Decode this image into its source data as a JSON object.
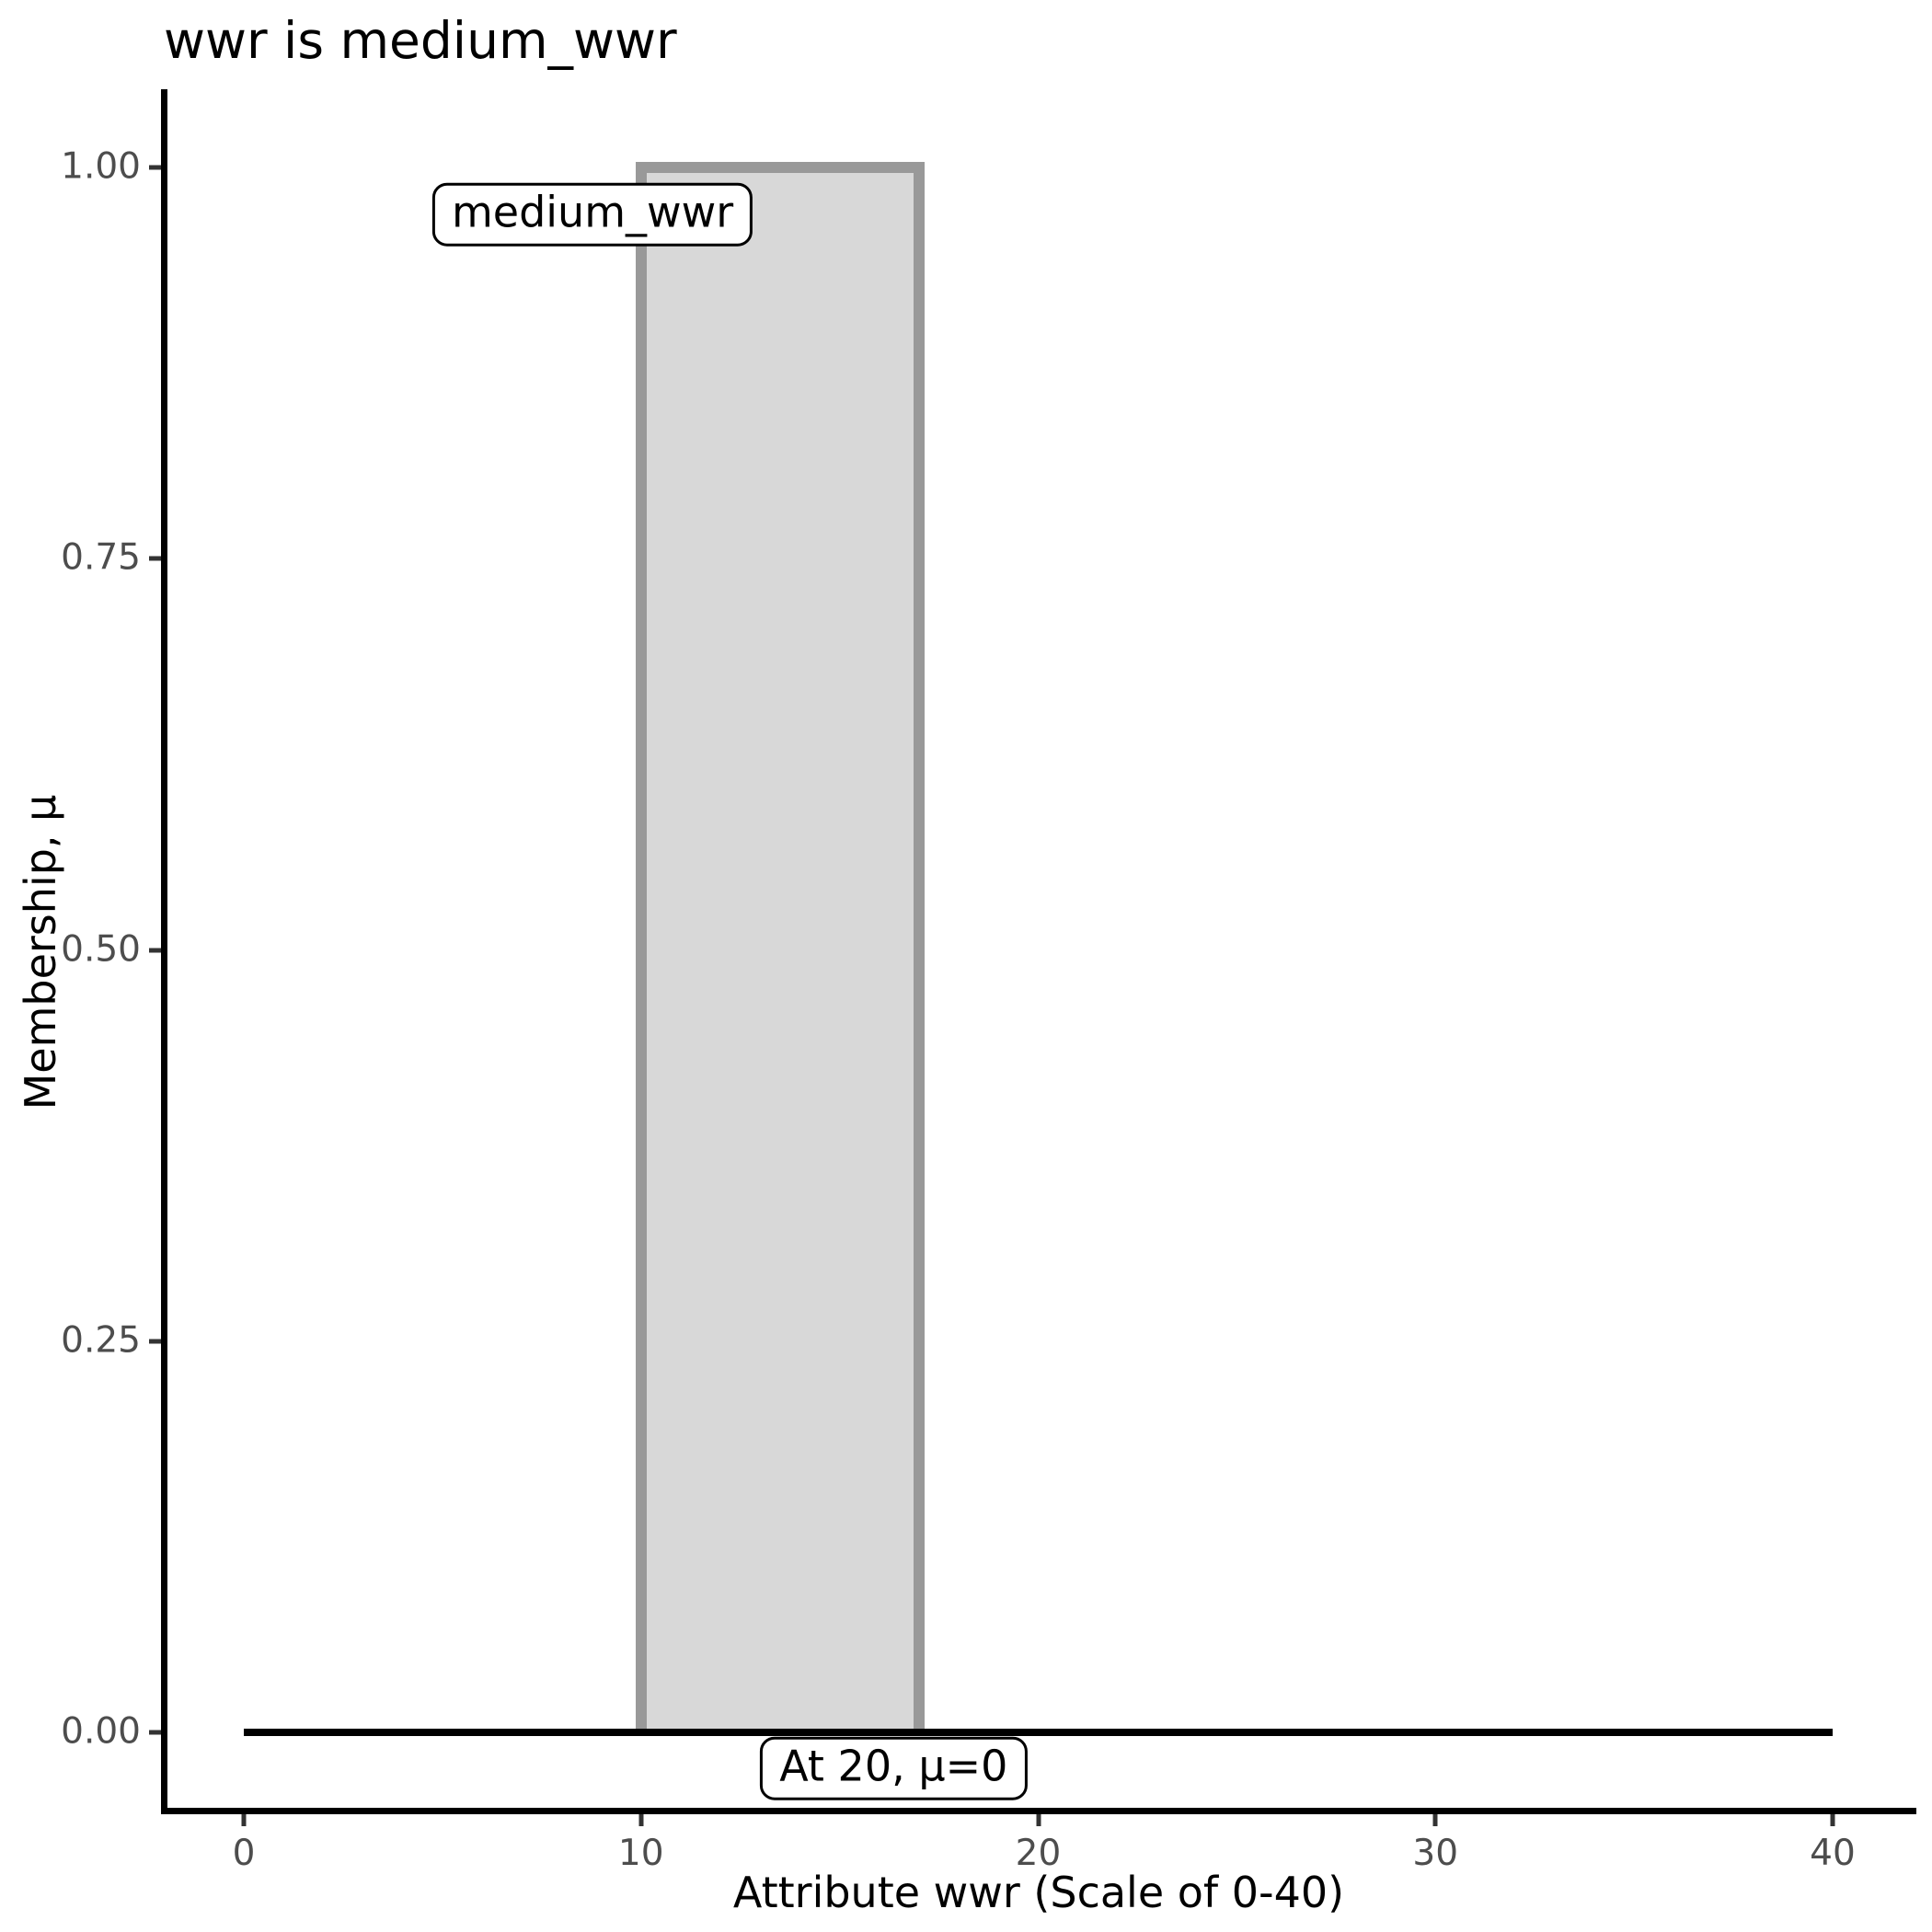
{
  "chart_data": {
    "type": "area",
    "title": "wwr is medium_wwr",
    "xlabel": "Attribute wwr (Scale of 0-40)",
    "ylabel": "Membership, μ",
    "xlim": [
      0,
      40
    ],
    "ylim": [
      0,
      1
    ],
    "x_ticks": [
      0,
      10,
      20,
      30,
      40
    ],
    "y_ticks": [
      0.0,
      0.25,
      0.5,
      0.75,
      1.0
    ],
    "y_tick_labels": [
      "0.00",
      "0.25",
      "0.50",
      "0.75",
      "1.00"
    ],
    "grid": false,
    "legend": "none",
    "series": [
      {
        "name": "medium_wwr membership function",
        "shape": "polygon",
        "points": [
          [
            10,
            0
          ],
          [
            10,
            1
          ],
          [
            17,
            1
          ],
          [
            17,
            0
          ]
        ],
        "fill": "#d8d8d8",
        "stroke": "#999999",
        "stroke_width": 12
      },
      {
        "name": "zero membership baseline",
        "shape": "line",
        "points": [
          [
            0,
            0
          ],
          [
            40,
            0
          ]
        ],
        "stroke": "#000000",
        "stroke_width": 8
      }
    ],
    "annotations": [
      {
        "id": "set-label",
        "text": "medium_wwr",
        "x": 8.78,
        "y": 0.97
      },
      {
        "id": "crisp-readout",
        "text": "At 20, μ=0",
        "x": 16.36,
        "y": -0.023
      }
    ],
    "colors": {
      "fill": "#d8d8d8",
      "stroke": "#999999",
      "baseline": "#000000",
      "axis": "#000000",
      "tick": "#333333",
      "tick_label": "#4d4d4d",
      "background": "#ffffff"
    }
  }
}
